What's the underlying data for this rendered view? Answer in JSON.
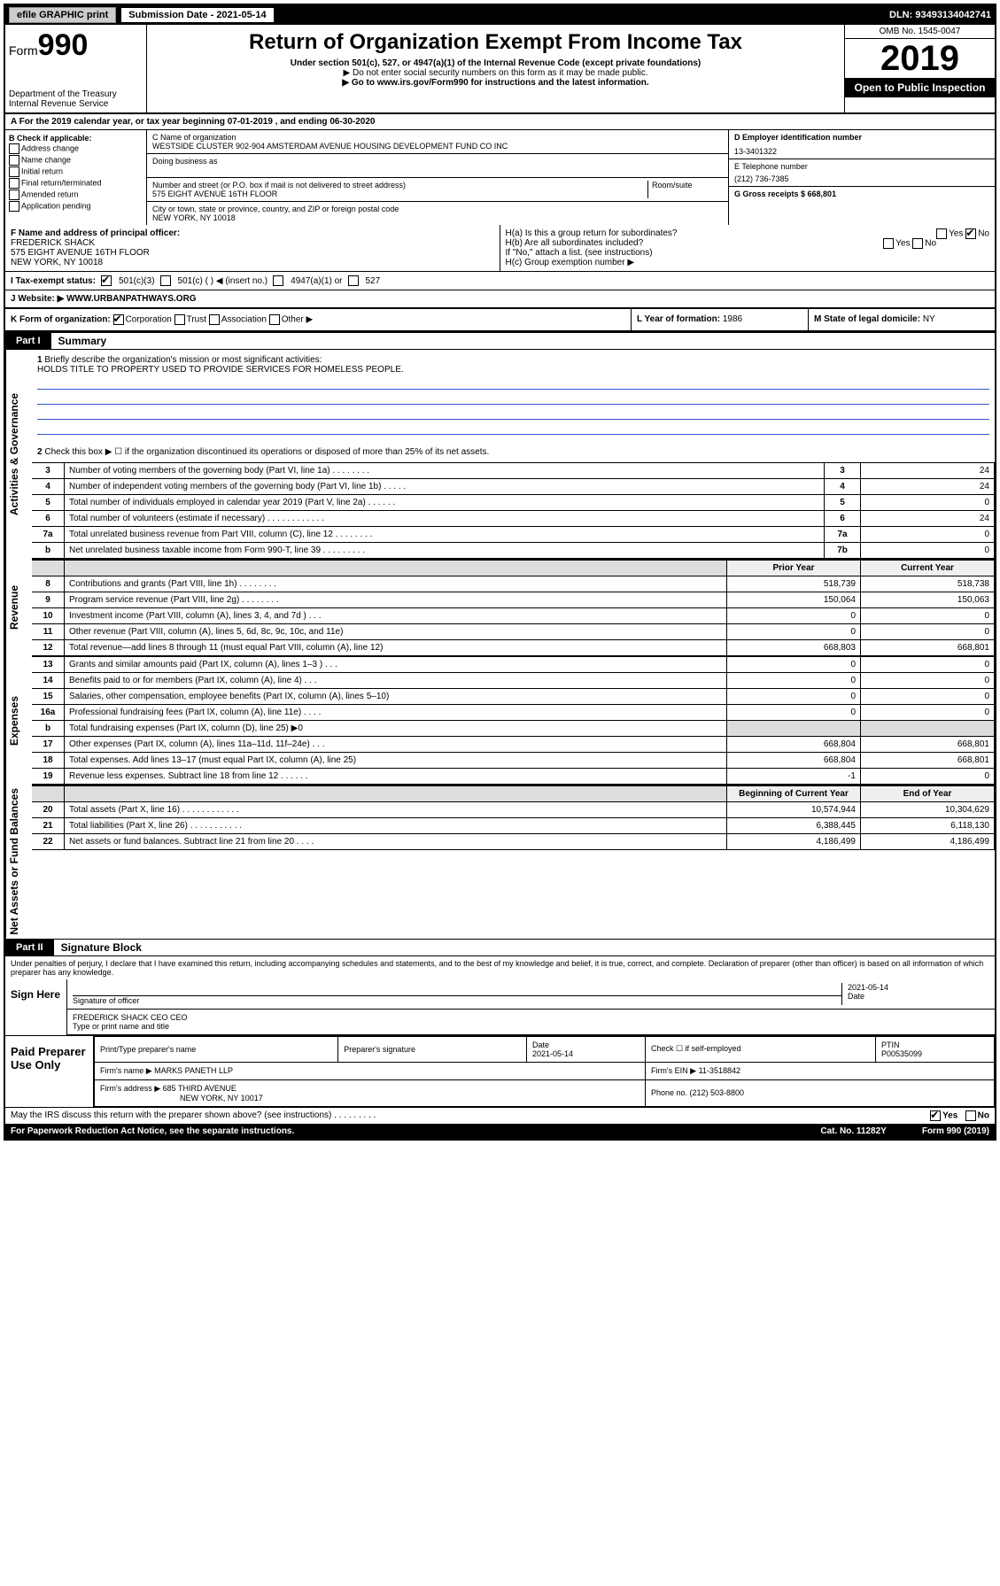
{
  "topbar": {
    "efile": "efile GRAPHIC print",
    "subdate_label": "Submission Date - 2021-05-14",
    "dln": "DLN: 93493134042741"
  },
  "header": {
    "form_label": "Form",
    "form_number": "990",
    "dept": "Department of the Treasury",
    "irs": "Internal Revenue Service",
    "title": "Return of Organization Exempt From Income Tax",
    "sub": "Under section 501(c), 527, or 4947(a)(1) of the Internal Revenue Code (except private foundations)",
    "nossn": "▶ Do not enter social security numbers on this form as it may be made public.",
    "goto": "▶ Go to www.irs.gov/Form990 for instructions and the latest information.",
    "omb": "OMB No. 1545-0047",
    "year": "2019",
    "open_pub": "Open to Public Inspection"
  },
  "lineA": "A For the 2019 calendar year, or tax year beginning 07-01-2019     , and ending 06-30-2020",
  "colB": {
    "title": "B Check if applicable:",
    "items": [
      "Address change",
      "Name change",
      "Initial return",
      "Final return/terminated",
      "Amended return",
      "Application pending"
    ]
  },
  "colC": {
    "name_label": "C Name of organization",
    "name": "WESTSIDE CLUSTER 902-904 AMSTERDAM AVENUE HOUSING DEVELOPMENT FUND CO INC",
    "dba_label": "Doing business as",
    "addr_label": "Number and street (or P.O. box if mail is not delivered to street address)",
    "room_label": "Room/suite",
    "addr": "575 EIGHT AVENUE 16TH FLOOR",
    "city_label": "City or town, state or province, country, and ZIP or foreign postal code",
    "city": "NEW YORK, NY  10018"
  },
  "colD": {
    "ein_label": "D Employer identification number",
    "ein": "13-3401322",
    "tel_label": "E Telephone number",
    "tel": "(212) 736-7385",
    "gross_label": "G Gross receipts $ 668,801"
  },
  "rowF": {
    "label": "F  Name and address of principal officer:",
    "name": "FREDERICK SHACK",
    "addr1": "575 EIGHT AVENUE 16TH FLOOR",
    "addr2": "NEW YORK, NY  10018"
  },
  "rowH": {
    "ha": "H(a)  Is this a group return for subordinates?",
    "hb": "H(b)  Are all subordinates included?",
    "hb_note": "If \"No,\" attach a list. (see instructions)",
    "hc": "H(c)  Group exemption number ▶",
    "yes": "Yes",
    "no": "No"
  },
  "rowI": {
    "label": "I     Tax-exempt status:",
    "o1": "501(c)(3)",
    "o2": "501(c) (   ) ◀ (insert no.)",
    "o3": "4947(a)(1) or",
    "o4": "527"
  },
  "rowJ": {
    "label": "J    Website: ▶",
    "val": "WWW.URBANPATHWAYS.ORG"
  },
  "rowK": {
    "label": "K Form of organization:",
    "corp": "Corporation",
    "trust": "Trust",
    "assoc": "Association",
    "other": "Other ▶",
    "l_label": "L Year of formation:",
    "l_val": "1986",
    "m_label": "M State of legal domicile:",
    "m_val": "NY"
  },
  "part1": {
    "tag": "Part I",
    "title": "Summary"
  },
  "q1": {
    "num": "1",
    "text": "Briefly describe the organization's mission or most significant activities:",
    "mission": "HOLDS TITLE TO PROPERTY USED TO PROVIDE SERVICES FOR HOMELESS PEOPLE."
  },
  "q2": "Check this box ▶ ☐  if the organization discontinued its operations or disposed of more than 25% of its net assets.",
  "sidelabels": {
    "gov": "Activities & Governance",
    "rev": "Revenue",
    "exp": "Expenses",
    "net": "Net Assets or Fund Balances"
  },
  "govlines": [
    {
      "n": "3",
      "d": "Number of voting members of the governing body (Part VI, line 1a)   .    .    .    .    .    .    .    .",
      "b": "3",
      "v": "24"
    },
    {
      "n": "4",
      "d": "Number of independent voting members of the governing body (Part VI, line 1b)   .    .    .    .    .",
      "b": "4",
      "v": "24"
    },
    {
      "n": "5",
      "d": "Total number of individuals employed in calendar year 2019 (Part V, line 2a)   .    .    .    .    .    .",
      "b": "5",
      "v": "0"
    },
    {
      "n": "6",
      "d": "Total number of volunteers (estimate if necessary)   .    .    .    .    .    .    .    .    .    .    .    .",
      "b": "6",
      "v": "24"
    },
    {
      "n": "7a",
      "d": "Total unrelated business revenue from Part VIII, column (C), line 12   .    .    .    .    .    .    .    .",
      "b": "7a",
      "v": "0"
    },
    {
      "n": "b",
      "d": "Net unrelated business taxable income from Form 990-T, line 39   .    .    .    .    .    .    .    .    .",
      "b": "7b",
      "v": "0"
    }
  ],
  "colheaders": {
    "prior": "Prior Year",
    "current": "Current Year"
  },
  "revlines": [
    {
      "n": "8",
      "d": "Contributions and grants (Part VIII, line 1h)   .    .    .    .    .    .    .    .",
      "p": "518,739",
      "c": "518,738"
    },
    {
      "n": "9",
      "d": "Program service revenue (Part VIII, line 2g)   .    .    .    .    .    .    .    .",
      "p": "150,064",
      "c": "150,063"
    },
    {
      "n": "10",
      "d": "Investment income (Part VIII, column (A), lines 3, 4, and 7d )   .    .    .",
      "p": "0",
      "c": "0"
    },
    {
      "n": "11",
      "d": "Other revenue (Part VIII, column (A), lines 5, 6d, 8c, 9c, 10c, and 11e)",
      "p": "0",
      "c": "0"
    },
    {
      "n": "12",
      "d": "Total revenue—add lines 8 through 11 (must equal Part VIII, column (A), line 12)",
      "p": "668,803",
      "c": "668,801"
    }
  ],
  "explines": [
    {
      "n": "13",
      "d": "Grants and similar amounts paid (Part IX, column (A), lines 1–3 )   .    .    .",
      "p": "0",
      "c": "0"
    },
    {
      "n": "14",
      "d": "Benefits paid to or for members (Part IX, column (A), line 4)   .    .    .",
      "p": "0",
      "c": "0"
    },
    {
      "n": "15",
      "d": "Salaries, other compensation, employee benefits (Part IX, column (A), lines 5–10)",
      "p": "0",
      "c": "0"
    },
    {
      "n": "16a",
      "d": "Professional fundraising fees (Part IX, column (A), line 11e)   .    .    .    .",
      "p": "0",
      "c": "0"
    },
    {
      "n": "b",
      "d": "Total fundraising expenses (Part IX, column (D), line 25) ▶0",
      "p": "",
      "c": "",
      "shade": true
    },
    {
      "n": "17",
      "d": "Other expenses (Part IX, column (A), lines 11a–11d, 11f–24e)   .    .    .",
      "p": "668,804",
      "c": "668,801"
    },
    {
      "n": "18",
      "d": "Total expenses. Add lines 13–17 (must equal Part IX, column (A), line 25)",
      "p": "668,804",
      "c": "668,801"
    },
    {
      "n": "19",
      "d": "Revenue less expenses. Subtract line 18 from line 12   .    .    .    .    .    .",
      "p": "-1",
      "c": "0"
    }
  ],
  "colheaders2": {
    "beg": "Beginning of Current Year",
    "end": "End of Year"
  },
  "netlines": [
    {
      "n": "20",
      "d": "Total assets (Part X, line 16)   .    .    .    .    .    .    .    .    .    .    .    .",
      "p": "10,574,944",
      "c": "10,304,629"
    },
    {
      "n": "21",
      "d": "Total liabilities (Part X, line 26)   .    .    .    .    .    .    .    .    .    .    .",
      "p": "6,388,445",
      "c": "6,118,130"
    },
    {
      "n": "22",
      "d": "Net assets or fund balances. Subtract line 21 from line 20   .    .    .    .",
      "p": "4,186,499",
      "c": "4,186,499"
    }
  ],
  "part2": {
    "tag": "Part II",
    "title": "Signature Block"
  },
  "perjury": "Under penalties of perjury, I declare that I have examined this return, including accompanying schedules and statements, and to the best of my knowledge and belief, it is true, correct, and complete. Declaration of preparer (other than officer) is based on all information of which preparer has any knowledge.",
  "sign": {
    "here": "Sign Here",
    "sig_label": "Signature of officer",
    "date_label": "Date",
    "date": "2021-05-14",
    "name": "FREDERICK SHACK CEO  CEO",
    "name_label": "Type or print name and title"
  },
  "paid": {
    "title": "Paid Preparer Use Only",
    "h1": "Print/Type preparer's name",
    "h2": "Preparer's signature",
    "h3": "Date",
    "date": "2021-05-14",
    "h4": "Check ☐  if self-employed",
    "h5": "PTIN",
    "ptin": "P00535099",
    "firm_label": "Firm's name      ▶",
    "firm": "MARKS PANETH LLP",
    "ein_label": "Firm's EIN ▶",
    "ein": "11-3518842",
    "addr_label": "Firm's address ▶",
    "addr1": "685 THIRD AVENUE",
    "addr2": "NEW YORK, NY  10017",
    "phone_label": "Phone no.",
    "phone": "(212) 503-8800"
  },
  "discuss": {
    "q": "May the IRS discuss this return with the preparer shown above? (see instructions)   .    .    .    .    .    .    .    .    .",
    "yes": "Yes",
    "no": "No"
  },
  "bottom": {
    "pra": "For Paperwork Reduction Act Notice, see the separate instructions.",
    "cat": "Cat. No. 11282Y",
    "form": "Form 990 (2019)"
  }
}
